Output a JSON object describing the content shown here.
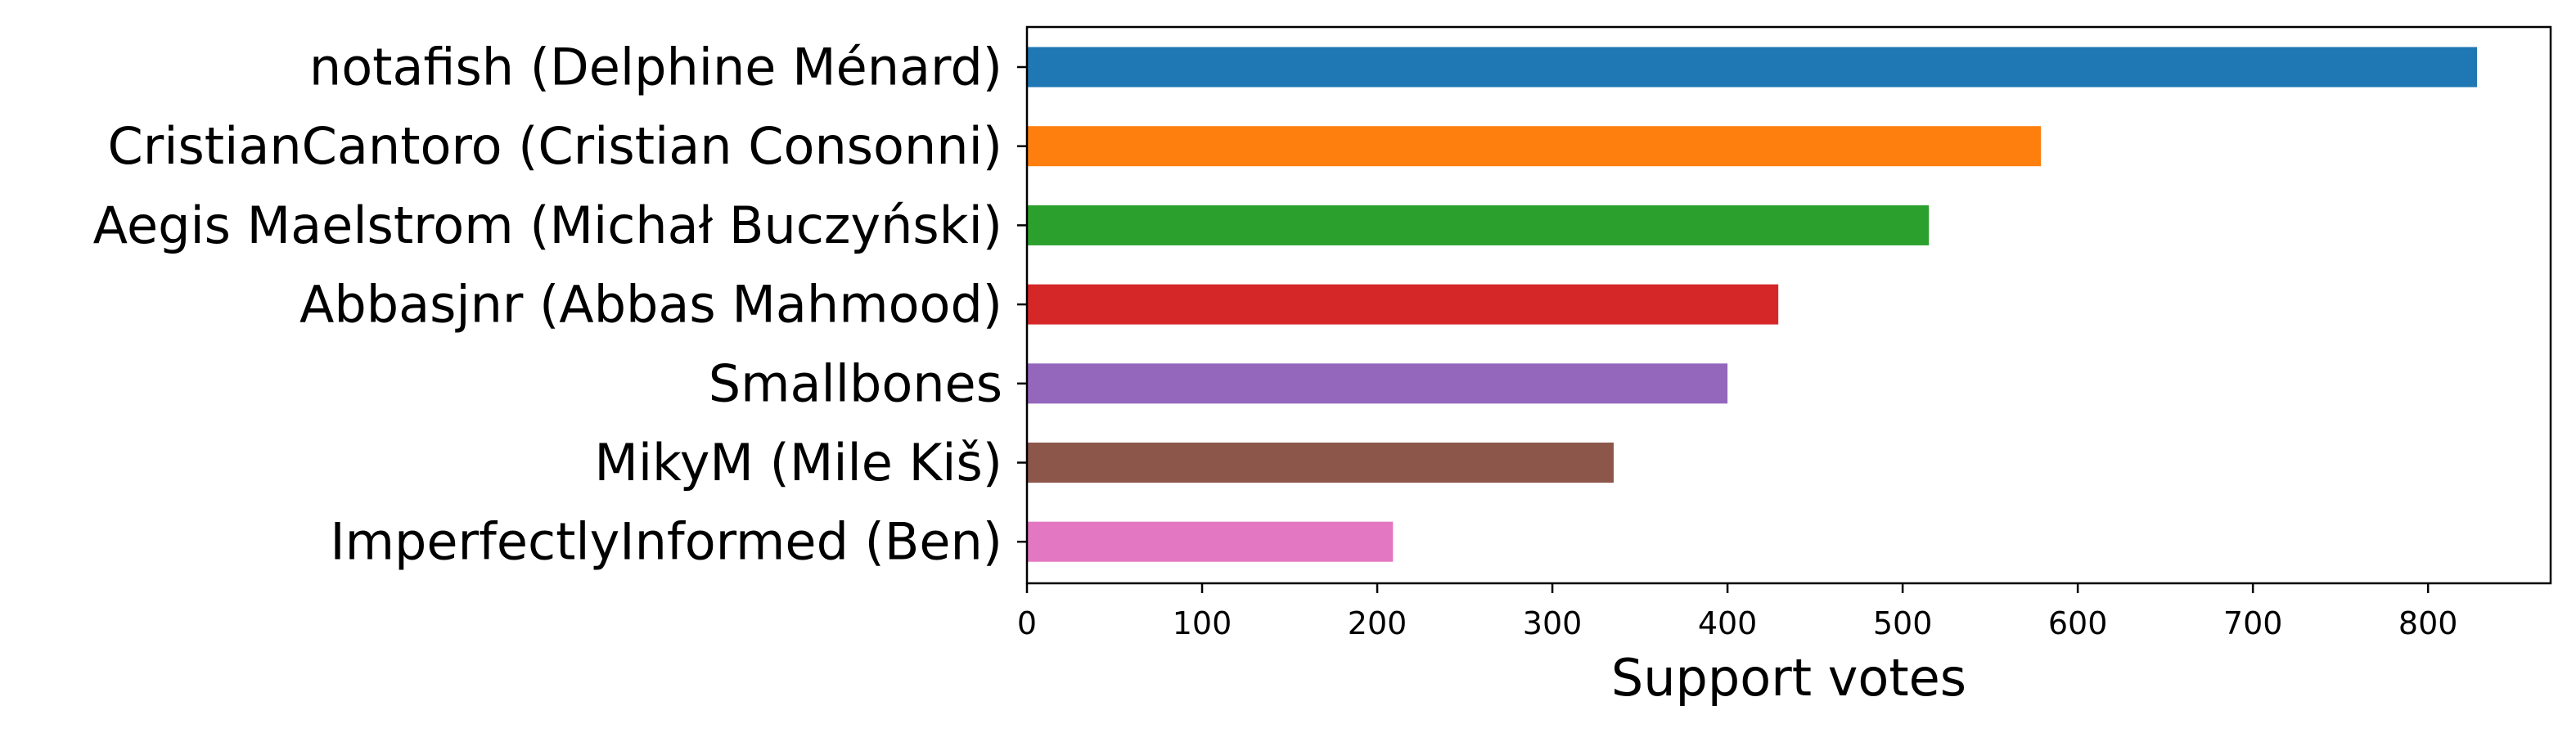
{
  "chart_data": {
    "type": "bar",
    "orientation": "horizontal",
    "categories": [
      "notafish (Delphine Ménard)",
      "CristianCantoro (Cristian Consonni)",
      "Aegis Maelstrom (Michał Buczyński)",
      "Abbasjnr (Abbas Mahmood)",
      "Smallbones",
      "MikyM (Mile Kiš)",
      "ImperfectlyInformed (Ben)"
    ],
    "values": [
      828,
      579,
      515,
      429,
      400,
      335,
      209
    ],
    "colors": [
      "#1f77b4",
      "#ff7f0e",
      "#2ca02c",
      "#d62728",
      "#9467bd",
      "#8c564b",
      "#e377c2"
    ],
    "title": "",
    "xlabel": "Support votes",
    "ylabel": "",
    "xlim": [
      0,
      870
    ],
    "xticks": [
      0,
      100,
      200,
      300,
      400,
      500,
      600,
      700,
      800
    ],
    "grid": false,
    "legend": "none"
  }
}
